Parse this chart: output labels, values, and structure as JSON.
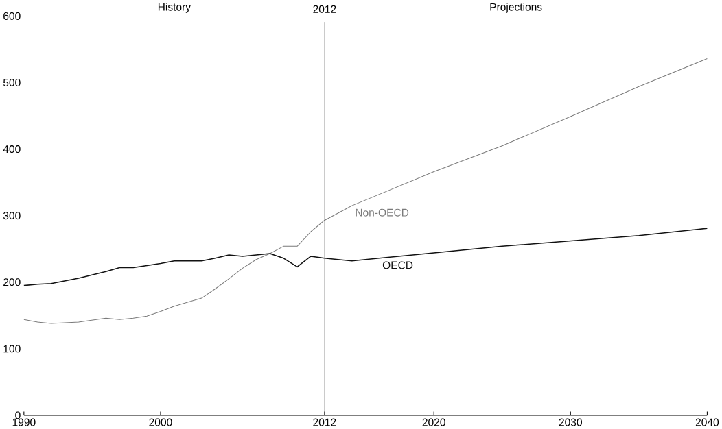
{
  "chart_data": {
    "type": "line",
    "x": [
      1990,
      1991,
      1992,
      1994,
      1996,
      1997,
      1998,
      1999,
      2000,
      2001,
      2003,
      2004,
      2005,
      2006,
      2007,
      2008,
      2009,
      2010,
      2011,
      2012,
      2014,
      2016,
      2020,
      2025,
      2030,
      2035,
      2040
    ],
    "series": [
      {
        "name": "Non-OECD",
        "color": "#7a7a7a",
        "values": [
          144,
          140,
          138,
          140,
          146,
          144,
          146,
          149,
          156,
          164,
          176,
          190,
          205,
          221,
          234,
          243,
          254,
          254,
          276,
          293,
          315,
          332,
          366,
          405,
          449,
          494,
          536
        ]
      },
      {
        "name": "OECD",
        "color": "#111111",
        "values": [
          195,
          197,
          198,
          206,
          216,
          222,
          222,
          225,
          228,
          232,
          232,
          236,
          241,
          239,
          241,
          243,
          236,
          223,
          239,
          236,
          232,
          236,
          244,
          254,
          262,
          270,
          281
        ]
      }
    ],
    "xlim": [
      1990,
      2040
    ],
    "xticks": [
      1990,
      2000,
      2012,
      2020,
      2030,
      2040
    ],
    "ylim": [
      0,
      600
    ],
    "yticks": [
      0,
      100,
      200,
      300,
      400,
      500,
      600
    ],
    "ref_lines": [
      {
        "axis": "x",
        "value": 2012,
        "label": "2012",
        "color": "#555555"
      }
    ],
    "annotations": [
      "History",
      "Projections"
    ],
    "grid": false,
    "marker": "none",
    "line_style": "solid"
  }
}
